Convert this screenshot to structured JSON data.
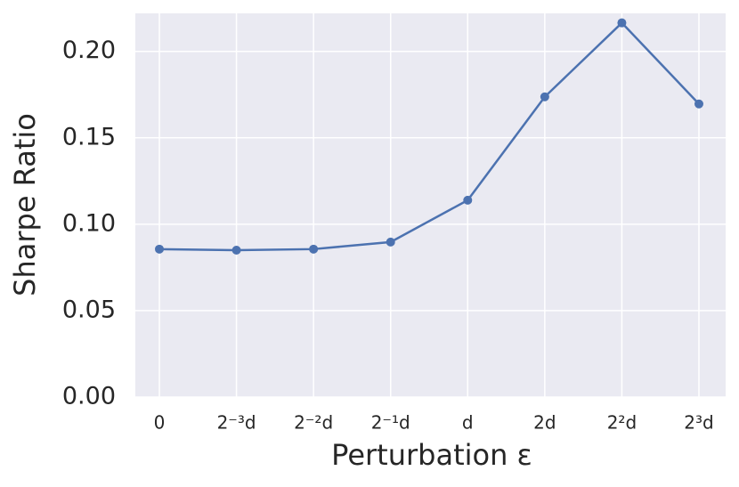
{
  "chart_data": {
    "type": "line",
    "xlabel": "Perturbation ε",
    "ylabel": "Sharpe Ratio",
    "categories": [
      "0",
      "2⁻³d",
      "2⁻²d",
      "2⁻¹d",
      "d",
      "2d",
      "2²d",
      "2³d"
    ],
    "series": [
      {
        "name": "Sharpe Ratio",
        "color": "#4c72b0",
        "values": [
          0.0856,
          0.085,
          0.0856,
          0.0897,
          0.1139,
          0.1737,
          0.2165,
          0.1696
        ]
      }
    ],
    "ylim": [
      0,
      0.222
    ],
    "yticks": [
      {
        "value": 0,
        "label": "0.00"
      },
      {
        "value": 0.05,
        "label": "0.05"
      },
      {
        "value": 0.1,
        "label": "0.10"
      },
      {
        "value": 0.15,
        "label": "0.15"
      },
      {
        "value": 0.2,
        "label": "0.20"
      }
    ],
    "grid": true
  }
}
